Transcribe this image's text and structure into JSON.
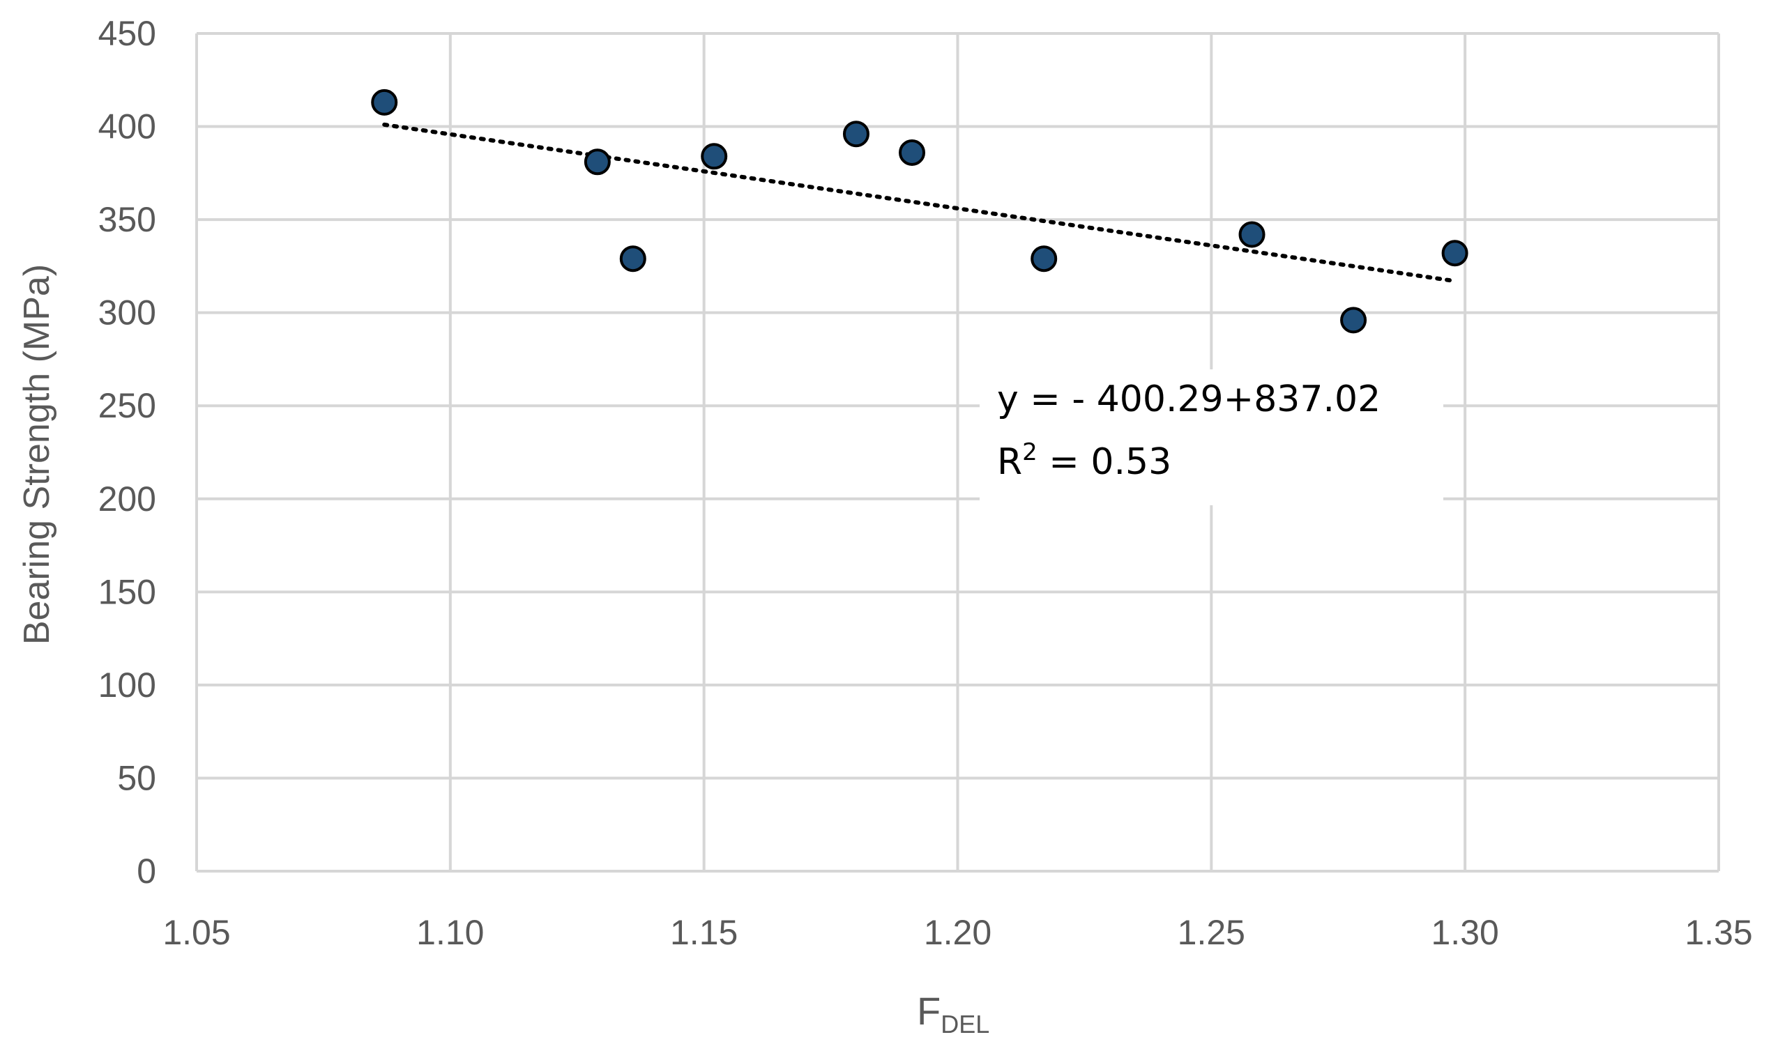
{
  "chart_data": {
    "type": "scatter",
    "xlabel_main": "F",
    "xlabel_sub": "DEL",
    "ylabel": "Bearing Strength (MPa)",
    "xlim": [
      1.05,
      1.35
    ],
    "ylim": [
      0,
      450
    ],
    "x_ticks": [
      "1.05",
      "1.10",
      "1.15",
      "1.20",
      "1.25",
      "1.30",
      "1.35"
    ],
    "y_ticks": [
      "0",
      "50",
      "100",
      "150",
      "200",
      "250",
      "300",
      "350",
      "400",
      "450"
    ],
    "grid": true,
    "series": [
      {
        "color": "#1f4e79",
        "points": [
          {
            "x": 1.087,
            "y": 413
          },
          {
            "x": 1.129,
            "y": 381
          },
          {
            "x": 1.136,
            "y": 329
          },
          {
            "x": 1.152,
            "y": 384
          },
          {
            "x": 1.18,
            "y": 396
          },
          {
            "x": 1.191,
            "y": 386
          },
          {
            "x": 1.217,
            "y": 329
          },
          {
            "x": 1.258,
            "y": 342
          },
          {
            "x": 1.278,
            "y": 296
          },
          {
            "x": 1.298,
            "y": 332
          }
        ]
      }
    ],
    "trendline": {
      "style": "dotted",
      "x": [
        1.087,
        1.298
      ],
      "y": [
        401,
        317
      ]
    },
    "annotation": {
      "line1": "y = - 400.29+837.02",
      "line2_prefix": "R",
      "line2_sup": "2",
      "line2_suffix": " = 0.53"
    }
  }
}
